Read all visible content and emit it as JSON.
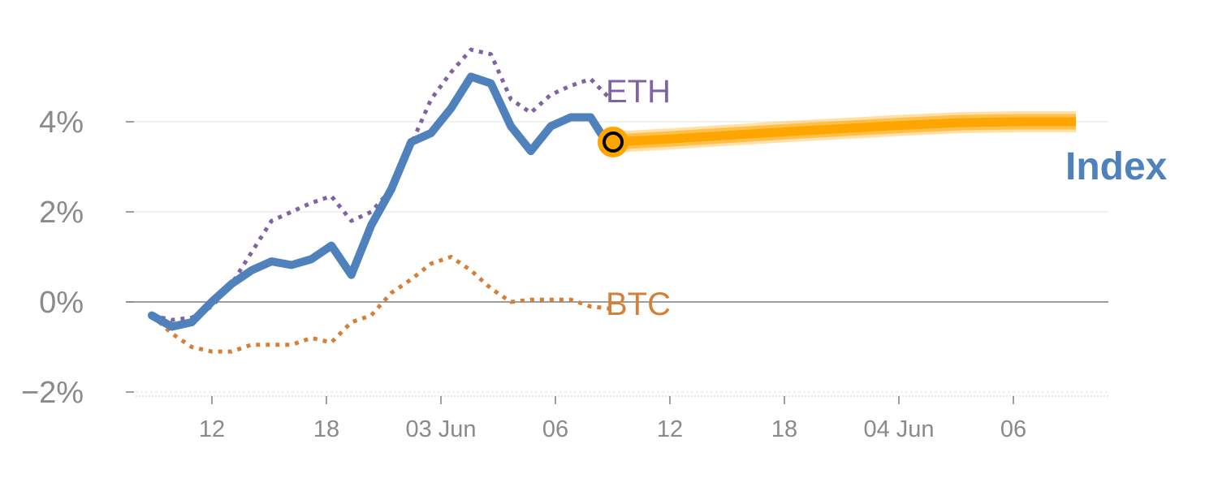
{
  "chart_data": {
    "type": "line",
    "x_tick_labels": [
      "12",
      "18",
      "03 Jun",
      "06",
      "12",
      "18",
      "04 Jun",
      "06"
    ],
    "y_tick_labels": [
      "4%",
      "2%",
      "0%",
      "−2%"
    ],
    "y_ticks": [
      4,
      2,
      0,
      -2
    ],
    "ylim": [
      -2.2,
      5.8
    ],
    "grid": true,
    "series": [
      {
        "name": "ETH",
        "style": "dotted",
        "color": "#8064a2",
        "values": [
          -0.3,
          -0.4,
          -0.35,
          -0.1,
          0.4,
          1.1,
          1.8,
          2.0,
          2.2,
          2.35,
          1.8,
          2.0,
          2.5,
          3.5,
          4.5,
          5.1,
          5.6,
          5.5,
          4.5,
          4.2,
          4.6,
          4.8,
          4.95,
          4.5
        ]
      },
      {
        "name": "BTC",
        "style": "dotted",
        "color": "#d68037",
        "values": [
          -0.3,
          -0.7,
          -1.0,
          -1.1,
          -1.1,
          -0.95,
          -0.95,
          -0.95,
          -0.8,
          -0.9,
          -0.45,
          -0.3,
          0.2,
          0.5,
          0.85,
          1.0,
          0.7,
          0.3,
          0.0,
          0.05,
          0.05,
          0.05,
          -0.1,
          -0.15
        ]
      },
      {
        "name": "Index",
        "style": "solid",
        "color": "#4f81bd",
        "values": [
          -0.3,
          -0.55,
          -0.45,
          0.0,
          0.4,
          0.7,
          0.9,
          0.82,
          0.95,
          1.25,
          0.6,
          1.7,
          2.5,
          3.55,
          3.75,
          4.3,
          5.0,
          4.85,
          3.9,
          3.35,
          3.9,
          4.1,
          4.1,
          3.4
        ]
      }
    ],
    "forecast": {
      "color": "#ffa500",
      "start_value": 3.55,
      "values": [
        3.55,
        3.62,
        3.7,
        3.78,
        3.85,
        3.92,
        3.98,
        4.0,
        4.0
      ]
    },
    "end_labels": {
      "eth": "ETH",
      "btc": "BTC",
      "index": "Index"
    }
  }
}
